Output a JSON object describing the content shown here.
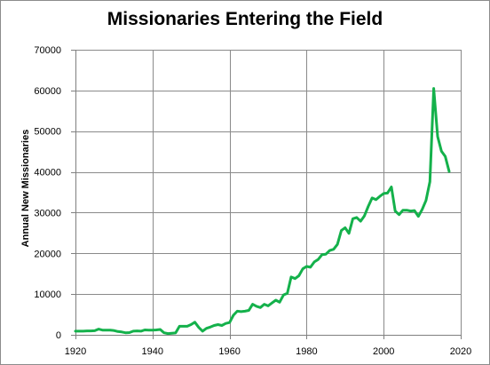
{
  "chart_data": {
    "type": "line",
    "title": "Missionaries Entering the Field",
    "xlabel": "",
    "ylabel": "Annual New Missionaries",
    "xlim": [
      1920,
      2020
    ],
    "ylim": [
      0,
      70000
    ],
    "x_ticks": [
      1920,
      1940,
      1960,
      1980,
      2000,
      2020
    ],
    "y_ticks": [
      0,
      10000,
      20000,
      30000,
      40000,
      50000,
      60000,
      70000
    ],
    "grid": true,
    "legend": "none",
    "series": [
      {
        "color": "#14b14b",
        "points": [
          [
            1920,
            900
          ],
          [
            1921,
            900
          ],
          [
            1922,
            900
          ],
          [
            1923,
            950
          ],
          [
            1924,
            950
          ],
          [
            1925,
            1000
          ],
          [
            1926,
            1400
          ],
          [
            1927,
            1150
          ],
          [
            1928,
            1150
          ],
          [
            1929,
            1150
          ],
          [
            1930,
            1050
          ],
          [
            1931,
            800
          ],
          [
            1932,
            700
          ],
          [
            1933,
            500
          ],
          [
            1934,
            550
          ],
          [
            1935,
            900
          ],
          [
            1936,
            950
          ],
          [
            1937,
            900
          ],
          [
            1938,
            1200
          ],
          [
            1939,
            1150
          ],
          [
            1940,
            1150
          ],
          [
            1941,
            1200
          ],
          [
            1942,
            1300
          ],
          [
            1943,
            500
          ],
          [
            1944,
            300
          ],
          [
            1945,
            400
          ],
          [
            1946,
            450
          ],
          [
            1947,
            2100
          ],
          [
            1948,
            2100
          ],
          [
            1949,
            2100
          ],
          [
            1950,
            2500
          ],
          [
            1951,
            3100
          ],
          [
            1952,
            1800
          ],
          [
            1953,
            900
          ],
          [
            1954,
            1600
          ],
          [
            1955,
            1900
          ],
          [
            1956,
            2300
          ],
          [
            1957,
            2500
          ],
          [
            1958,
            2300
          ],
          [
            1959,
            2800
          ],
          [
            1960,
            3000
          ],
          [
            1961,
            4800
          ],
          [
            1962,
            5800
          ],
          [
            1963,
            5700
          ],
          [
            1964,
            5800
          ],
          [
            1965,
            6000
          ],
          [
            1966,
            7500
          ],
          [
            1967,
            7000
          ],
          [
            1968,
            6700
          ],
          [
            1969,
            7500
          ],
          [
            1970,
            7100
          ],
          [
            1971,
            7800
          ],
          [
            1972,
            8500
          ],
          [
            1973,
            8000
          ],
          [
            1974,
            9800
          ],
          [
            1975,
            10200
          ],
          [
            1976,
            14200
          ],
          [
            1977,
            13800
          ],
          [
            1978,
            14500
          ],
          [
            1979,
            16200
          ],
          [
            1980,
            16800
          ],
          [
            1981,
            16600
          ],
          [
            1982,
            17900
          ],
          [
            1983,
            18500
          ],
          [
            1984,
            19700
          ],
          [
            1985,
            19800
          ],
          [
            1986,
            20700
          ],
          [
            1987,
            21000
          ],
          [
            1988,
            22200
          ],
          [
            1989,
            25600
          ],
          [
            1990,
            26300
          ],
          [
            1991,
            24900
          ],
          [
            1992,
            28500
          ],
          [
            1993,
            28800
          ],
          [
            1994,
            27900
          ],
          [
            1995,
            29200
          ],
          [
            1996,
            31500
          ],
          [
            1997,
            33600
          ],
          [
            1998,
            33200
          ],
          [
            1999,
            34000
          ],
          [
            2000,
            34700
          ],
          [
            2001,
            34800
          ],
          [
            2002,
            36300
          ],
          [
            2003,
            30400
          ],
          [
            2004,
            29500
          ],
          [
            2005,
            30600
          ],
          [
            2006,
            30600
          ],
          [
            2007,
            30400
          ],
          [
            2008,
            30500
          ],
          [
            2009,
            29100
          ],
          [
            2010,
            30800
          ],
          [
            2011,
            33000
          ],
          [
            2012,
            37600
          ],
          [
            2013,
            60500
          ],
          [
            2014,
            48700
          ],
          [
            2015,
            45100
          ],
          [
            2016,
            43800
          ],
          [
            2017,
            40100
          ]
        ]
      }
    ]
  }
}
